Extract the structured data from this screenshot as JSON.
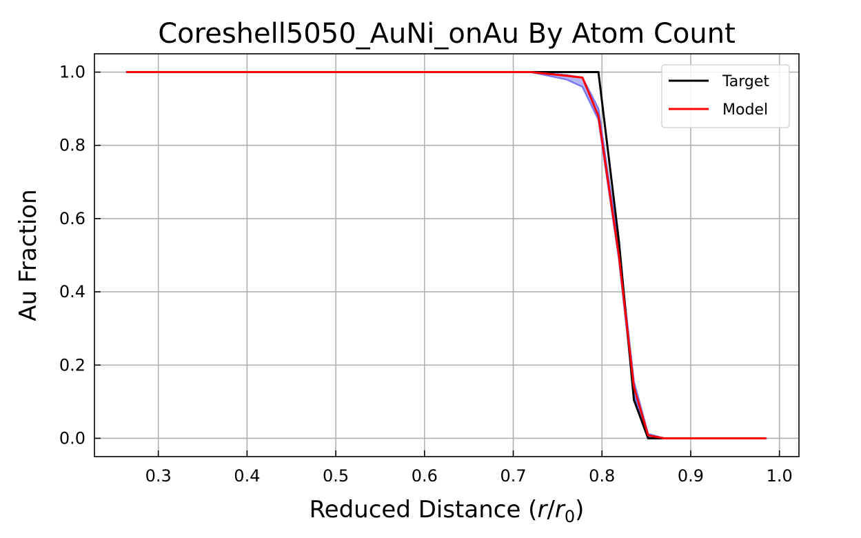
{
  "chart_data": {
    "type": "line",
    "title": "Coreshell5050_AuNi_onAu By Atom Count",
    "xlabel_prefix": "Reduced Distance (",
    "xlabel_r": "r",
    "xlabel_slash": "/",
    "xlabel_r0": "r",
    "xlabel_sub": "0",
    "xlabel_suffix": ")",
    "ylabel": "Au Fraction",
    "xlim": [
      0.228,
      1.022
    ],
    "ylim": [
      -0.05,
      1.05
    ],
    "xticks": [
      0.3,
      0.4,
      0.5,
      0.6,
      0.7,
      0.8,
      0.9,
      1.0
    ],
    "xtick_labels": [
      "0.3",
      "0.4",
      "0.5",
      "0.6",
      "0.7",
      "0.8",
      "0.9",
      "1.0"
    ],
    "yticks": [
      0.0,
      0.2,
      0.4,
      0.6,
      0.8,
      1.0
    ],
    "ytick_labels": [
      "0.0",
      "0.2",
      "0.4",
      "0.6",
      "0.8",
      "1.0"
    ],
    "grid": true,
    "legend_position": "top-right",
    "band": {
      "color": "#7a78f0",
      "x": [
        0.264,
        0.72,
        0.76,
        0.778,
        0.796,
        0.819,
        0.836,
        0.852,
        0.87,
        0.985
      ],
      "upper": [
        1.0,
        1.0,
        0.992,
        0.985,
        0.9,
        0.52,
        0.155,
        0.012,
        0.0,
        0.0
      ],
      "lower": [
        1.0,
        1.0,
        0.98,
        0.96,
        0.87,
        0.49,
        0.12,
        0.003,
        0.0,
        0.0
      ]
    },
    "series": [
      {
        "name": "Target",
        "color": "#000000",
        "x": [
          0.264,
          0.72,
          0.76,
          0.778,
          0.796,
          0.819,
          0.836,
          0.852,
          0.87,
          0.985
        ],
        "y": [
          1.0,
          1.0,
          1.0,
          1.0,
          1.0,
          0.54,
          0.105,
          0.0,
          0.0,
          0.0
        ]
      },
      {
        "name": "Model",
        "color": "#ff0000",
        "x": [
          0.264,
          0.72,
          0.76,
          0.778,
          0.796,
          0.819,
          0.836,
          0.852,
          0.87,
          0.985
        ],
        "y": [
          1.0,
          1.0,
          0.99,
          0.985,
          0.88,
          0.5,
          0.14,
          0.008,
          0.0,
          0.0
        ]
      }
    ]
  }
}
